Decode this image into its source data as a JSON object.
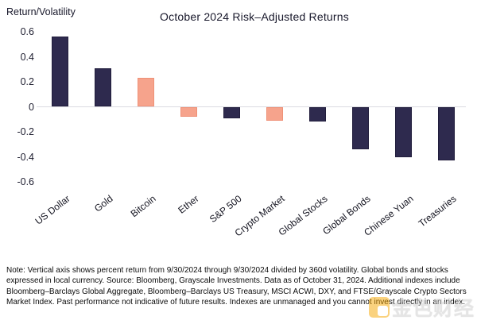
{
  "chart_data": {
    "type": "bar",
    "title": "October 2024 Risk–Adjusted Returns",
    "ylabel": "Return/Volatility",
    "xlabel": "",
    "categories": [
      "US Dollar",
      "Gold",
      "Bitcoin",
      "Ether",
      "S&P 500",
      "Crypto Market",
      "Global Stocks",
      "Global Bonds",
      "Chinese Yuan",
      "Treasuries"
    ],
    "values": [
      0.56,
      0.31,
      0.23,
      -0.08,
      -0.09,
      -0.11,
      -0.12,
      -0.34,
      -0.4,
      -0.43
    ],
    "bar_color_keys": [
      "navy",
      "navy",
      "salmon",
      "salmon",
      "navy",
      "salmon",
      "navy",
      "navy",
      "navy",
      "navy"
    ],
    "colors": {
      "navy": "#2e2a4e",
      "salmon": "#f6a38c"
    },
    "ylim": [
      -0.6,
      0.6
    ],
    "yticks": [
      0.6,
      0.4,
      0.2,
      0,
      -0.2,
      -0.4,
      -0.6
    ],
    "ytick_labels": [
      "0.6",
      "0.4",
      "0.2",
      "0",
      "-0.2",
      "-0.4",
      "-0.6"
    ],
    "grid": false,
    "legend": false
  },
  "note": {
    "text": "Note: Vertical axis shows percent return from 9/30/2024 through 9/30/2024 divided by 360d volatility. Global bonds and stocks expressed in local currency. Source: Bloomberg, Grayscale Investments. Data as of October 31, 2024. Additional indexes include Bloomberg–Barclays Global Aggregate, Bloomberg–Barclays US Treasury, MSCI ACWI, DXY, and FTSE/Grayscale Crypto Sectors Market Index. Past performance not indicative of future results. Indexes are unmanaged and you cannot invest directly in an index."
  },
  "watermark": {
    "text": "金色财经"
  }
}
